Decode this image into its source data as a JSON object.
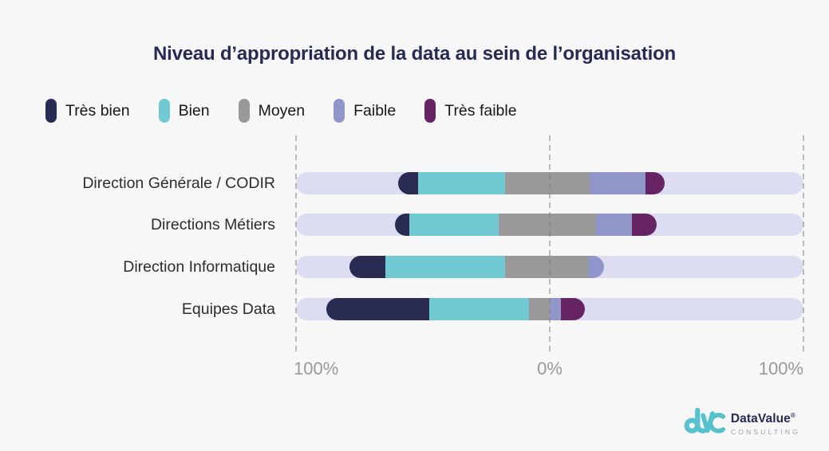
{
  "title": "Niveau d’appropriation de la data au sein de l’organisation",
  "legend": [
    {
      "label": "Très bien",
      "color": "#292b52"
    },
    {
      "label": "Bien",
      "color": "#70c9d3"
    },
    {
      "label": "Moyen",
      "color": "#9b9899"
    },
    {
      "label": "Faible",
      "color": "#9095ca"
    },
    {
      "label": "Très faible",
      "color": "#662465"
    }
  ],
  "axis": {
    "ticks": [
      "100%",
      "0%",
      "100%"
    ]
  },
  "chart_data": {
    "type": "bar",
    "variant": "diverging-stacked-horizontal",
    "title": "Niveau d’appropriation de la data au sein de l’organisation",
    "categories": [
      "Direction Générale / CODIR",
      "Directions Métiers",
      "Direction Informatique",
      "Equipes Data"
    ],
    "series_labels": [
      "Très bien",
      "Bien",
      "Moyen",
      "Faible",
      "Très faible"
    ],
    "axis_range_pct": [
      -100,
      100
    ],
    "axis_tick_labels": [
      "100%",
      "0%",
      "100%"
    ],
    "grid": "dashed-vertical-gridlines",
    "legend_position": "top-left",
    "rows": [
      {
        "label": "Direction Générale / CODIR",
        "start_pct": -59.7,
        "values_pct": [
          7.9,
          34.3,
          33.3,
          22.0,
          7.5
        ]
      },
      {
        "label": "Directions Métiers",
        "start_pct": -61.0,
        "values_pct": [
          5.7,
          35.2,
          38.4,
          14.2,
          9.7
        ]
      },
      {
        "label": "Direction Informatique",
        "start_pct": -78.9,
        "values_pct": [
          14.2,
          47.2,
          32.7,
          6.3,
          0
        ]
      },
      {
        "label": "Equipes Data",
        "start_pct": -88.1,
        "values_pct": [
          40.6,
          39.3,
          8.2,
          4.4,
          9.4
        ]
      }
    ],
    "notes": "Values are axis-percent widths read from the plot; the Moyen segment straddles the 0% axis on the first three rows."
  },
  "colors": {
    "background": "#f7f7f7",
    "title": "#272a53",
    "row_label": "#2d2d2d",
    "legend_label": "#161616",
    "axis_label": "#999999",
    "gridline": "#c9c9c9",
    "track": "#dcddf1",
    "logo_teal": "#55c2cd",
    "logo_navy": "#272a53",
    "logo_gray": "#9aa0a6"
  },
  "logo": {
    "name": "DataValue",
    "registered": "®",
    "tagline": "CONSULTING"
  }
}
